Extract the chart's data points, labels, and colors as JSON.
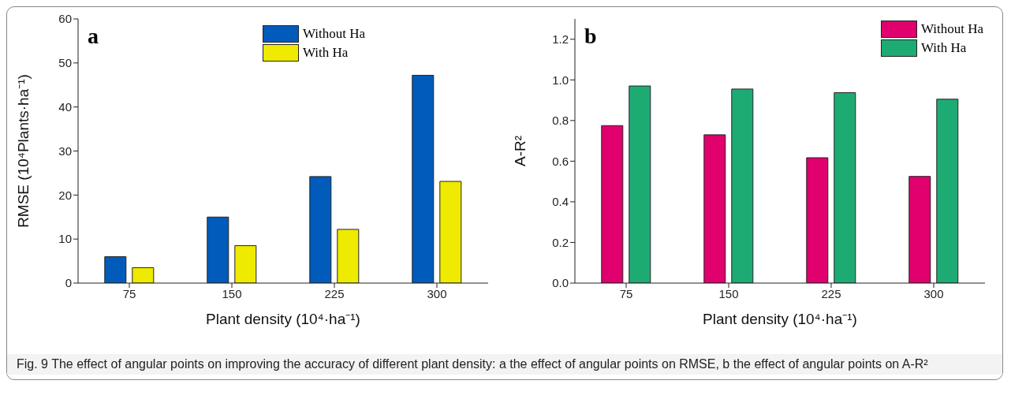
{
  "chart_data": [
    {
      "type": "bar",
      "title": "a",
      "xlabel": "Plant density (10⁴·ha⁻¹)",
      "ylabel": "RMSE (10⁴Plants·ha⁻¹)",
      "categories": [
        "75",
        "150",
        "225",
        "300"
      ],
      "series": [
        {
          "name": "Without Ha",
          "color": "#005bbb",
          "values": [
            6,
            15,
            24.2,
            47.2
          ]
        },
        {
          "name": "With Ha",
          "color": "#eeea00",
          "values": [
            3.5,
            8.5,
            12.2,
            23.1
          ]
        }
      ],
      "ylim": [
        0,
        60
      ],
      "yticks": [
        0,
        10,
        20,
        30,
        40,
        50,
        60
      ],
      "legend": "top",
      "grid": false,
      "annotations": [
        "Fig. 9  The effect of angular points on improving the accuracy of different plant density: a the effect of angular points on RMSE, b the effect of angular points on A-R²"
      ]
    },
    {
      "type": "bar",
      "title": "b",
      "xlabel": "Plant density (10⁴·ha⁻¹)",
      "ylabel": "A-R²",
      "categories": [
        "75",
        "150",
        "225",
        "300"
      ],
      "series": [
        {
          "name": "Without Ha",
          "color": "#e0006e",
          "values": [
            0.775,
            0.73,
            0.617,
            0.525
          ]
        },
        {
          "name": "With Ha",
          "color": "#1eab73",
          "values": [
            0.97,
            0.955,
            0.937,
            0.905
          ]
        }
      ],
      "ylim": [
        0,
        1.3
      ],
      "yticks": [
        {
          "value": 0,
          "label": "0.0"
        },
        {
          "value": 0.2,
          "label": "0.2"
        },
        {
          "value": 0.4,
          "label": "0.4"
        },
        {
          "value": 0.6,
          "label": "0.6"
        },
        {
          "value": 0.8,
          "label": "0.8"
        },
        {
          "value": 1,
          "label": "1.0"
        },
        {
          "value": 1.2,
          "label": "1.2"
        }
      ],
      "legend": "top right",
      "grid": false
    }
  ]
}
